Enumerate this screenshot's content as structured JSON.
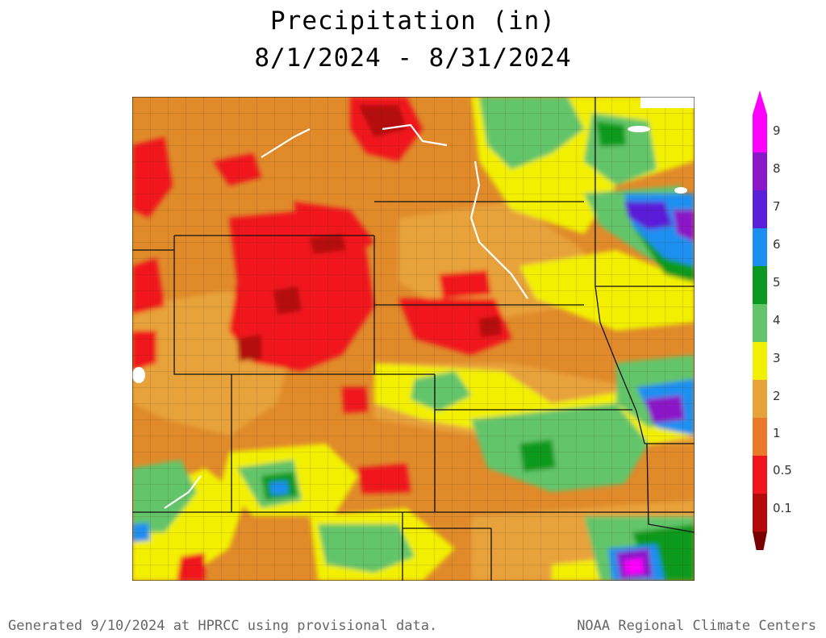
{
  "title": {
    "line1": "Precipitation (in)",
    "line2": "8/1/2024 - 8/31/2024"
  },
  "legend": {
    "items": [
      {
        "label": "9",
        "color": "#ff00ff"
      },
      {
        "label": "8",
        "color": "#8b18c8"
      },
      {
        "label": "7",
        "color": "#5a1fd8"
      },
      {
        "label": "6",
        "color": "#1a8ff0"
      },
      {
        "label": "5",
        "color": "#0b9a1f"
      },
      {
        "label": "4",
        "color": "#63c56a"
      },
      {
        "label": "3",
        "color": "#f2f000"
      },
      {
        "label": "2",
        "color": "#e8a23a"
      },
      {
        "label": "1",
        "color": "#e87a2a"
      },
      {
        "label": "0.5",
        "color": "#f0141c"
      },
      {
        "label": "0.1",
        "color": "#b40a0a"
      }
    ],
    "bottom_color": "#7a0000"
  },
  "footer": {
    "left": "Generated 9/10/2024 at HPRCC using provisional data.",
    "right": "NOAA Regional Climate Centers"
  }
}
